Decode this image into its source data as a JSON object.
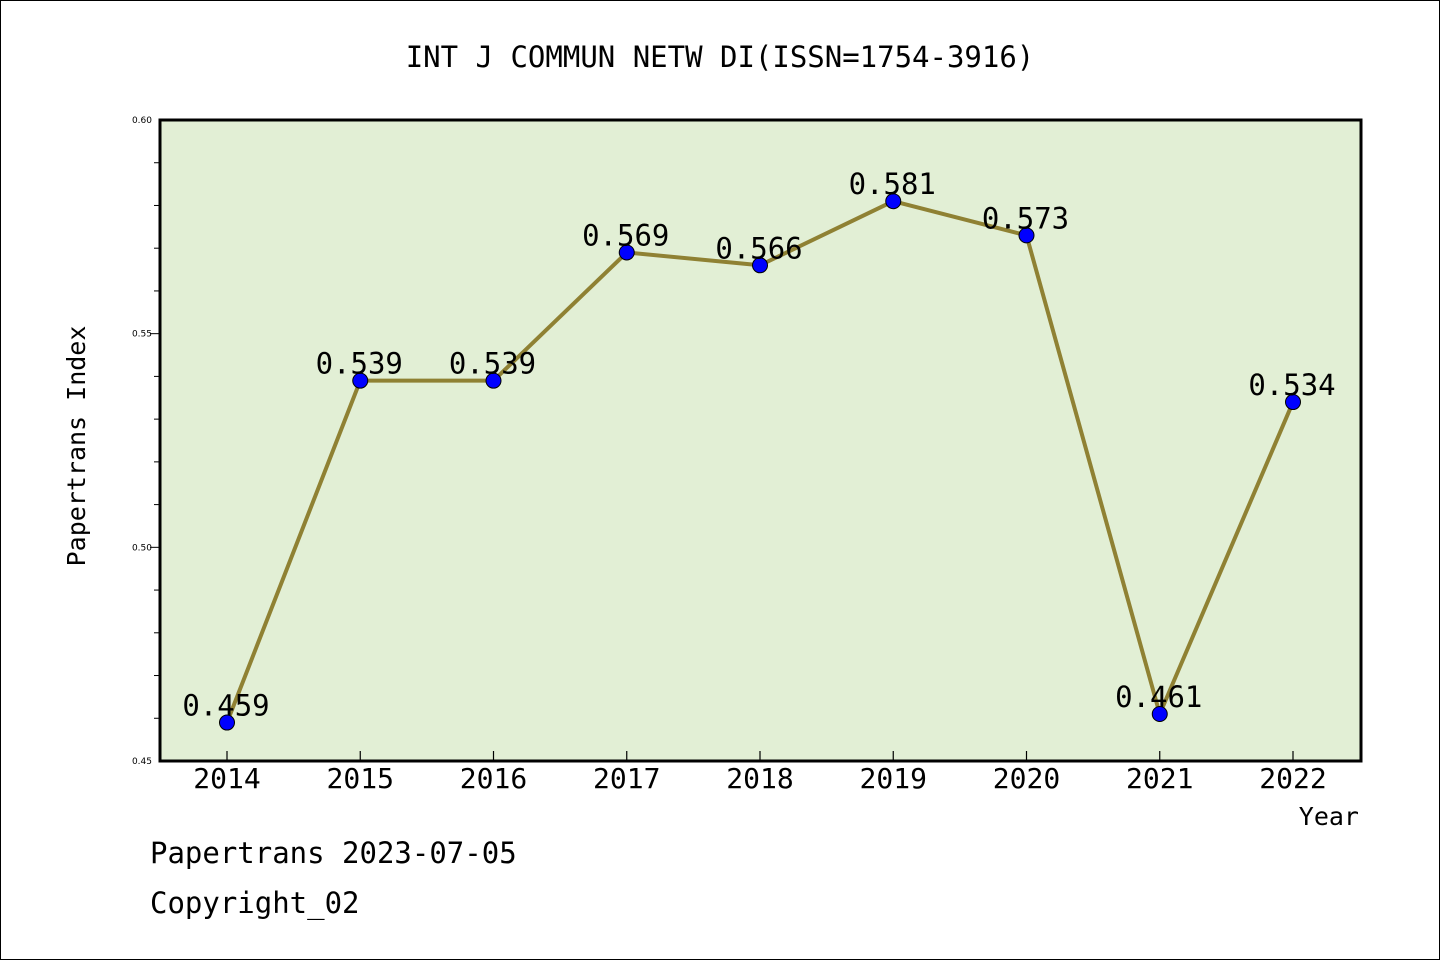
{
  "chart_data": {
    "type": "line",
    "title": "INT J COMMUN NETW DI(ISSN=1754-3916)",
    "xlabel": "Year",
    "ylabel": "Papertrans Index",
    "categories": [
      "2014",
      "2015",
      "2016",
      "2017",
      "2018",
      "2019",
      "2020",
      "2021",
      "2022"
    ],
    "values": [
      0.459,
      0.539,
      0.539,
      0.569,
      0.566,
      0.581,
      0.573,
      0.461,
      0.534
    ],
    "value_labels": [
      "0.459",
      "0.539",
      "0.539",
      "0.569",
      "0.566",
      "0.581",
      "0.573",
      "0.461",
      "0.534"
    ],
    "ylim": [
      0.45,
      0.6
    ],
    "yticks": [
      0.45,
      0.5,
      0.55,
      0.6
    ],
    "ytick_labels": [
      "0.45",
      "0.50",
      "0.55",
      "0.60"
    ],
    "grid": false,
    "colors": {
      "plot_background": "#e2efd5",
      "line": "#8f8133",
      "marker": "#0000ff"
    }
  },
  "footer": {
    "date_line": "Papertrans 2023-07-05",
    "copyright_line": "Copyright_02"
  }
}
